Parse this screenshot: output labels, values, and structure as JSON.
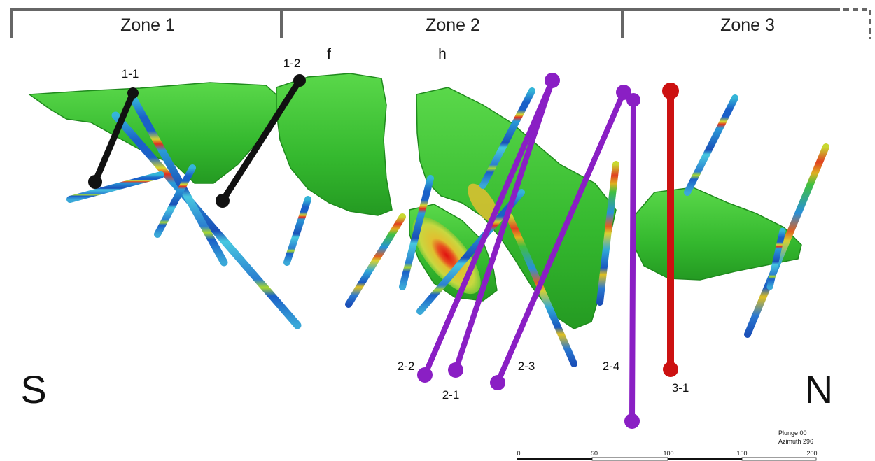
{
  "zones": [
    "Zone 1",
    "Zone 2",
    "Zone 3"
  ],
  "section_letters": [
    "f",
    "h"
  ],
  "holes": [
    "1-1",
    "1-2",
    "2-2",
    "2-1",
    "2-3",
    "2-4",
    "3-1"
  ],
  "compass": {
    "left": "S",
    "right": "N"
  },
  "view": {
    "plunge": "Plunge 00",
    "azimuth": "Azimuth 296"
  },
  "scale_ticks": [
    "0",
    "50",
    "100",
    "150",
    "200"
  ],
  "colors": {
    "black_holes": "#111111",
    "zone2_holes": "#8a1fc4",
    "zone3_hole": "#cc1111",
    "mineral_shell": "#3ec13a",
    "high_grade_core": "#e01010",
    "background_drill": "#1f5fc4"
  }
}
